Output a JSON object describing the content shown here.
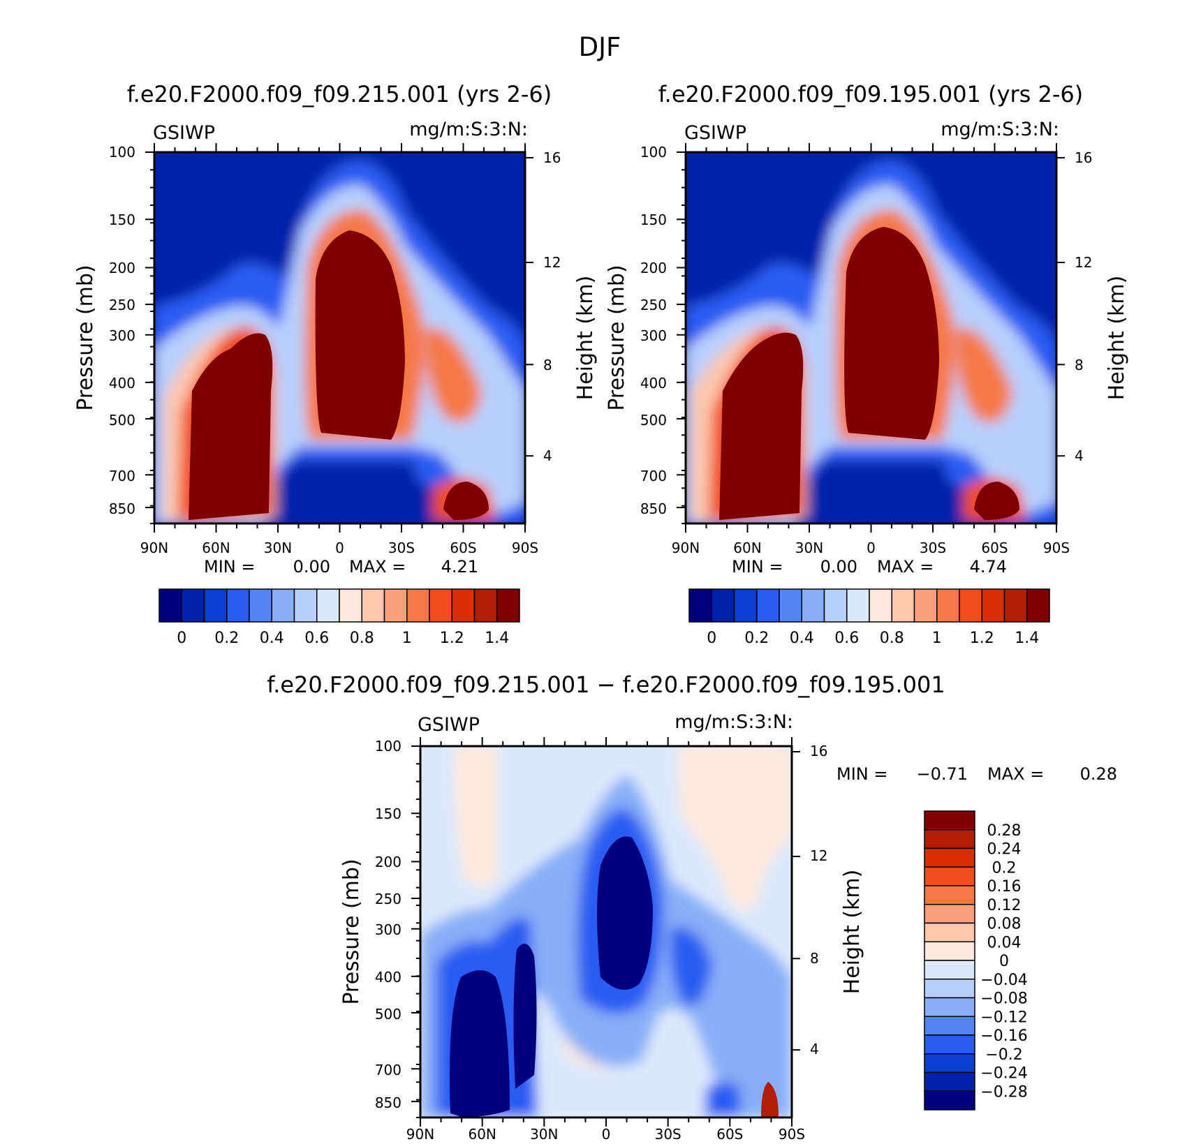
{
  "figure": {
    "title": "DJF"
  },
  "chart_data": [
    {
      "type": "heatmap",
      "title": "f.e20.F2000.f09_f09.215.001 (yrs 2-6)",
      "left_string": "GSIWP",
      "right_string": "mg/m:S:3:N:",
      "ylabel": "Pressure (mb)",
      "ylabel_right": "Height (km)",
      "x_ticks": [
        "90N",
        "60N",
        "30N",
        "0",
        "30S",
        "60S",
        "90S"
      ],
      "y_ticks": [
        "100",
        "150",
        "200",
        "250",
        "300",
        "400",
        "500",
        "700",
        "850"
      ],
      "y_ticks_right": [
        "16",
        "12",
        "8",
        "4"
      ],
      "min_label": "MIN =",
      "min_value": "0.00",
      "max_label": "MAX =",
      "max_value": "4.21",
      "colorbar": {
        "orientation": "horizontal",
        "labels": [
          "0",
          "0.2",
          "0.4",
          "0.6",
          "0.8",
          "1",
          "1.2",
          "1.4"
        ],
        "colors": [
          "#00007f",
          "#0022a9",
          "#0a3ed4",
          "#2b5cf2",
          "#5585f7",
          "#88aef6",
          "#b8cffb",
          "#dce9fb",
          "#fde9dc",
          "#fbc7ad",
          "#f9a07a",
          "#f57849",
          "#f14d20",
          "#da2e06",
          "#b31c07",
          "#7f0000"
        ]
      }
    },
    {
      "type": "heatmap",
      "title": "f.e20.F2000.f09_f09.195.001 (yrs 2-6)",
      "left_string": "GSIWP",
      "right_string": "mg/m:S:3:N:",
      "ylabel": "Pressure (mb)",
      "ylabel_right": "Height (km)",
      "x_ticks": [
        "90N",
        "60N",
        "30N",
        "0",
        "30S",
        "60S",
        "90S"
      ],
      "y_ticks": [
        "100",
        "150",
        "200",
        "250",
        "300",
        "400",
        "500",
        "700",
        "850"
      ],
      "y_ticks_right": [
        "16",
        "12",
        "8",
        "4"
      ],
      "min_label": "MIN =",
      "min_value": "0.00",
      "max_label": "MAX =",
      "max_value": "4.74",
      "colorbar": {
        "orientation": "horizontal",
        "labels": [
          "0",
          "0.2",
          "0.4",
          "0.6",
          "0.8",
          "1",
          "1.2",
          "1.4"
        ],
        "colors": [
          "#00007f",
          "#0022a9",
          "#0a3ed4",
          "#2b5cf2",
          "#5585f7",
          "#88aef6",
          "#b8cffb",
          "#dce9fb",
          "#fde9dc",
          "#fbc7ad",
          "#f9a07a",
          "#f57849",
          "#f14d20",
          "#da2e06",
          "#b31c07",
          "#7f0000"
        ]
      }
    },
    {
      "type": "heatmap",
      "title": "f.e20.F2000.f09_f09.215.001 − f.e20.F2000.f09_f09.195.001",
      "left_string": "GSIWP",
      "right_string": "mg/m:S:3:N:",
      "ylabel": "Pressure (mb)",
      "ylabel_right": "Height (km)",
      "x_ticks": [
        "90N",
        "60N",
        "30N",
        "0",
        "30S",
        "60S",
        "90S"
      ],
      "y_ticks": [
        "100",
        "150",
        "200",
        "250",
        "300",
        "400",
        "500",
        "700",
        "850"
      ],
      "y_ticks_right": [
        "16",
        "12",
        "8",
        "4"
      ],
      "min_label": "MIN =",
      "min_value": "−0.71",
      "max_label": "MAX =",
      "max_value": "0.28",
      "colorbar": {
        "orientation": "vertical",
        "labels": [
          "0.28",
          "0.24",
          "0.2",
          "0.16",
          "0.12",
          "0.08",
          "0.04",
          "0",
          "−0.04",
          "−0.08",
          "−0.12",
          "−0.16",
          "−0.2",
          "−0.24",
          "−0.28"
        ],
        "colors": [
          "#7f0000",
          "#b31c07",
          "#da2e06",
          "#f14d20",
          "#f57849",
          "#f9a07a",
          "#fbc7ad",
          "#fde9dc",
          "#dce9fb",
          "#b8cffb",
          "#88aef6",
          "#5585f7",
          "#2b5cf2",
          "#0a3ed4",
          "#0022a9",
          "#00007f"
        ]
      }
    }
  ]
}
